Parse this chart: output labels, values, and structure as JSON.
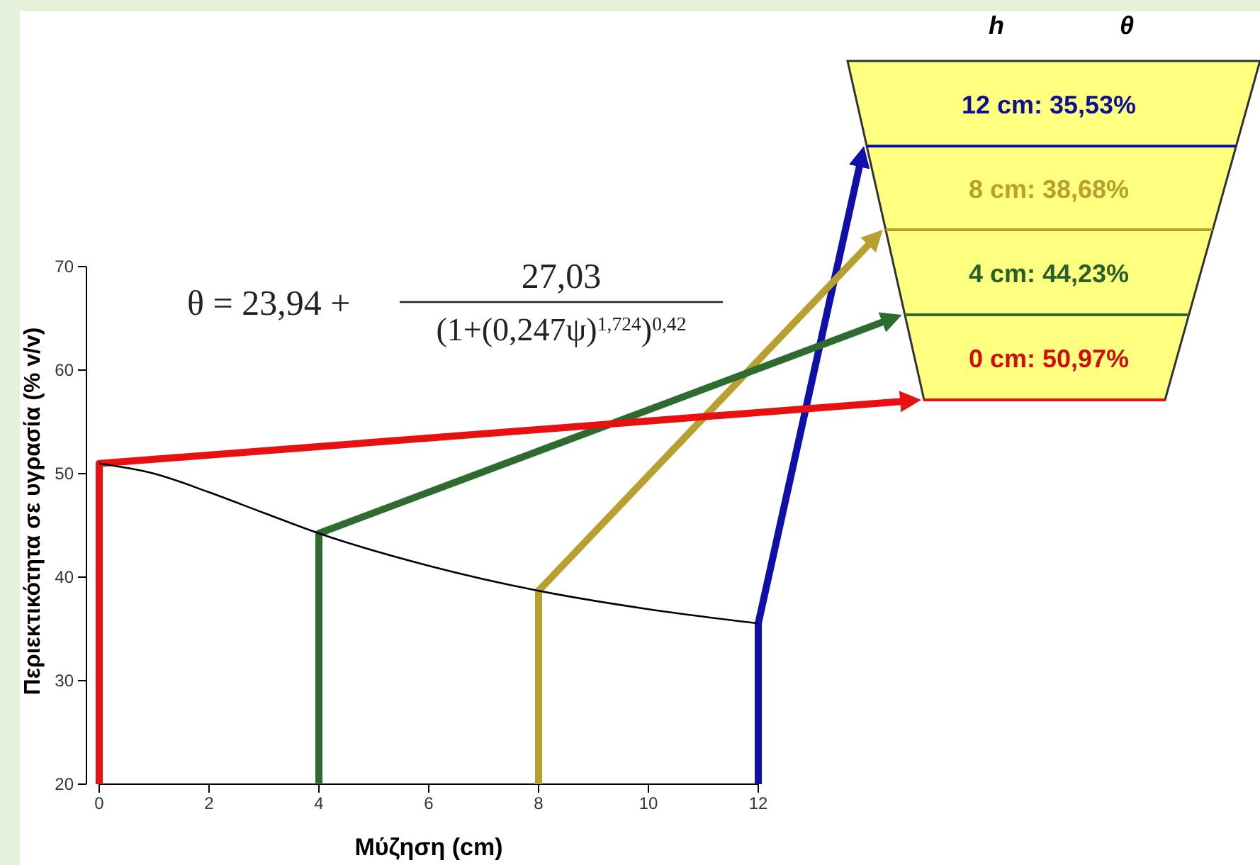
{
  "chart_data": {
    "type": "line",
    "xlabel": "Μύζηση (cm)",
    "ylabel": "Περιεκτικότητα σε υγρασία (% v/v)",
    "xlim": [
      0,
      12
    ],
    "xticks": [
      0,
      2,
      4,
      6,
      8,
      10,
      12
    ],
    "ylim": [
      20,
      70
    ],
    "yticks": [
      20,
      30,
      40,
      50,
      60,
      70
    ],
    "series": [
      {
        "color": "#000000",
        "x": [
          0,
          1,
          2,
          3,
          4,
          6,
          8,
          10,
          12
        ],
        "values": [
          50.97,
          50.0,
          48.2,
          46.2,
          44.23,
          41.1,
          38.68,
          36.9,
          35.53
        ]
      }
    ],
    "annotations": [
      "12 cm: 35,53%",
      "8 cm: 38,68%",
      "4 cm: 44,23%",
      "0 cm: 50,97%",
      "h",
      "θ",
      "θ = 23,94 +",
      "27,03",
      "(1+(0,247ψ)$^{1,724}$)$^{0,42}$"
    ]
  }
}
